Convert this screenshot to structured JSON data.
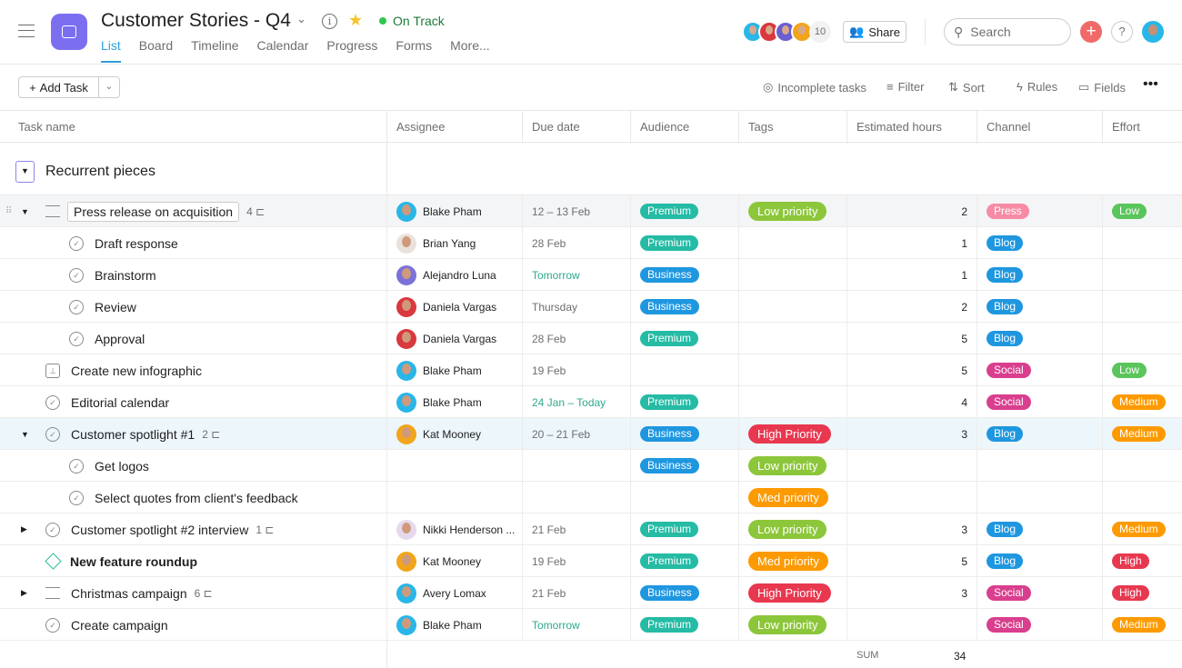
{
  "header": {
    "title": "Customer Stories - Q4",
    "status": "On Track",
    "status_color": "#2cc84d",
    "tabs": [
      "List",
      "Board",
      "Timeline",
      "Calendar",
      "Progress",
      "Forms",
      "More..."
    ],
    "active_tab": "List",
    "member_count": "10",
    "share": "Share",
    "search_placeholder": "Search",
    "help": "?"
  },
  "toolbar": {
    "add_task": "Add Task",
    "incomplete": "Incomplete tasks",
    "filter": "Filter",
    "sort": "Sort",
    "rules": "Rules",
    "fields": "Fields"
  },
  "columns": [
    "Task name",
    "Assignee",
    "Due date",
    "Audience",
    "Tags",
    "Estimated hours",
    "Channel",
    "Effort"
  ],
  "section": {
    "title": "Recurrent pieces"
  },
  "colors": {
    "Premium": "#25bba5",
    "Business": "#1f97e0",
    "Low priority": "#8cc63a",
    "Med priority": "#fd9a00",
    "High Priority": "#e8384f",
    "Press": "#f78ba6",
    "Blog": "#1f97e0",
    "Social": "#d93f8e",
    "Low": "#5ac55a",
    "Medium": "#fd9a00",
    "High": "#e8384f",
    "due_green": "#2fa88f"
  },
  "rows": [
    {
      "name": "Press release on acquisition",
      "sub": 0,
      "icon": "parent",
      "exp": "down",
      "subtasks": "4",
      "assignee": "Blake Pham",
      "av": "#29b6e8",
      "due": "12 – 13 Feb",
      "audience": "Premium",
      "tag": "Low priority",
      "hours": "2",
      "channel": "Press",
      "effort": "Low",
      "state": "sel"
    },
    {
      "name": "Draft response",
      "sub": 1,
      "icon": "check",
      "assignee": "Brian Yang",
      "av": "#e9e2dc",
      "due": "28 Feb",
      "audience": "Premium",
      "hours": "1",
      "channel": "Blog"
    },
    {
      "name": "Brainstorm",
      "sub": 1,
      "icon": "check",
      "assignee": "Alejandro Luna",
      "av": "#7b72d8",
      "due": "Tomorrow",
      "due_green": true,
      "audience": "Business",
      "hours": "1",
      "channel": "Blog"
    },
    {
      "name": "Review",
      "sub": 1,
      "icon": "check",
      "assignee": "Daniela Vargas",
      "av": "#d9383e",
      "due": "Thursday",
      "audience": "Business",
      "hours": "2",
      "channel": "Blog"
    },
    {
      "name": "Approval",
      "sub": 1,
      "icon": "check",
      "assignee": "Daniela Vargas",
      "av": "#d9383e",
      "due": "28 Feb",
      "audience": "Premium",
      "hours": "5",
      "channel": "Blog"
    },
    {
      "name": "Create new infographic",
      "sub": 0,
      "icon": "approval",
      "assignee": "Blake Pham",
      "av": "#29b6e8",
      "due": "19 Feb",
      "hours": "5",
      "channel": "Social",
      "effort": "Low"
    },
    {
      "name": "Editorial calendar",
      "sub": 0,
      "icon": "check",
      "assignee": "Blake Pham",
      "av": "#29b6e8",
      "due": "24 Jan – Today",
      "due_green": true,
      "audience": "Premium",
      "hours": "4",
      "channel": "Social",
      "effort": "Medium"
    },
    {
      "name": "Customer spotlight #1",
      "sub": 0,
      "icon": "check",
      "exp": "down",
      "subtasks": "2",
      "assignee": "Kat Mooney",
      "av": "#f2a51a",
      "due": "20 – 21 Feb",
      "audience": "Business",
      "tag": "High Priority",
      "hours": "3",
      "channel": "Blog",
      "effort": "Medium",
      "state": "hl"
    },
    {
      "name": "Get logos",
      "sub": 1,
      "icon": "check",
      "audience": "Business",
      "tag": "Low priority"
    },
    {
      "name": "Select quotes from client's feedback",
      "sub": 1,
      "icon": "check",
      "tag": "Med priority"
    },
    {
      "name": "Customer spotlight #2 interview",
      "sub": 0,
      "icon": "check",
      "exp": "right",
      "subtasks": "1",
      "assignee": "Nikki Henderson ...",
      "av": "#e6d9ee",
      "due": "21 Feb",
      "audience": "Premium",
      "tag": "Low priority",
      "hours": "3",
      "channel": "Blog",
      "effort": "Medium"
    },
    {
      "name": "New feature roundup",
      "sub": 0,
      "icon": "milestone",
      "bold": true,
      "assignee": "Kat Mooney",
      "av": "#f2a51a",
      "due": "19 Feb",
      "audience": "Premium",
      "tag": "Med priority",
      "hours": "5",
      "channel": "Blog",
      "effort": "High"
    },
    {
      "name": "Christmas campaign",
      "sub": 0,
      "icon": "parent",
      "exp": "right",
      "subtasks": "6",
      "assignee": "Avery Lomax",
      "av": "#29b6e8",
      "due": "21 Feb",
      "audience": "Business",
      "tag": "High Priority",
      "hours": "3",
      "channel": "Social",
      "effort": "High"
    },
    {
      "name": "Create campaign",
      "sub": 0,
      "icon": "check",
      "assignee": "Blake Pham",
      "av": "#29b6e8",
      "due": "Tomorrow",
      "due_green": true,
      "audience": "Premium",
      "tag": "Low priority",
      "hours": "",
      "channel": "Social",
      "effort": "Medium"
    }
  ],
  "footer": {
    "sum_label": "SUM",
    "sum_value": "34"
  }
}
